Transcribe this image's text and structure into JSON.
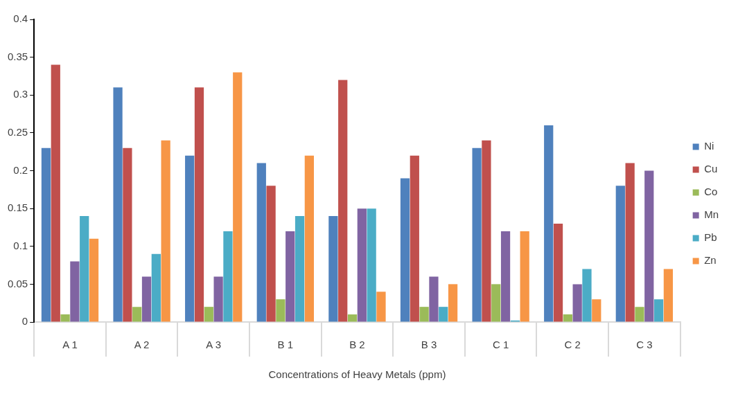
{
  "chart_data": {
    "type": "bar",
    "xlabel": "Concentrations of Heavy Metals (ppm)",
    "categories": [
      "A 1",
      "A 2",
      "A 3",
      "B 1",
      "B 2",
      "B 3",
      "C 1",
      "C 2",
      "C 3"
    ],
    "series": [
      {
        "name": "Ni",
        "color": "#4f81bd",
        "values": [
          0.23,
          0.31,
          0.22,
          0.21,
          0.14,
          0.19,
          0.23,
          0.26,
          0.18
        ]
      },
      {
        "name": "Cu",
        "color": "#c0504d",
        "values": [
          0.34,
          0.23,
          0.31,
          0.18,
          0.32,
          0.22,
          0.24,
          0.13,
          0.21
        ]
      },
      {
        "name": "Co",
        "color": "#9bbb59",
        "values": [
          0.01,
          0.02,
          0.02,
          0.03,
          0.01,
          0.02,
          0.05,
          0.01,
          0.02
        ]
      },
      {
        "name": "Mn",
        "color": "#8064a2",
        "values": [
          0.08,
          0.06,
          0.06,
          0.12,
          0.15,
          0.06,
          0.12,
          0.05,
          0.2
        ]
      },
      {
        "name": "Pb",
        "color": "#4bacc6",
        "values": [
          0.14,
          0.09,
          0.12,
          0.14,
          0.15,
          0.02,
          0.002,
          0.07,
          0.03
        ]
      },
      {
        "name": "Zn",
        "color": "#f79646",
        "values": [
          0.11,
          0.24,
          0.33,
          0.22,
          0.04,
          0.05,
          0.12,
          0.03,
          0.07
        ]
      }
    ],
    "ylim": [
      0,
      0.4
    ],
    "yticks": [
      0,
      0.05,
      0.1,
      0.15,
      0.2,
      0.25,
      0.3,
      0.35,
      0.4
    ],
    "grid": false,
    "legend": "right"
  }
}
